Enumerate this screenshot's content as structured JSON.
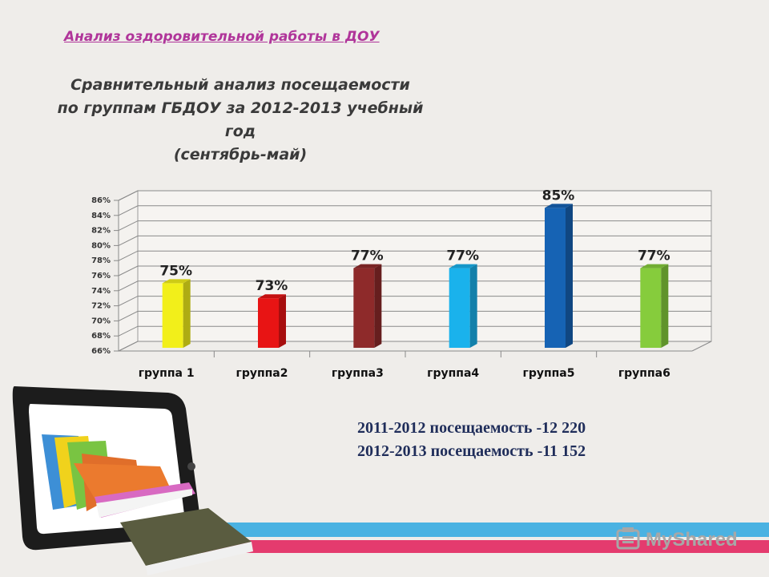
{
  "header": {
    "link_text": "Анализ оздоровительной работы в ДОУ"
  },
  "title_lines": [
    "Сравнительный анализ  посещаемости",
    "по группам ГБДОУ за 2012-2013 учебный",
    "год",
    "(сентябрь-май)"
  ],
  "chart_data": {
    "type": "bar",
    "categories": [
      "группа  1",
      "группа2",
      "группа3",
      "группа4",
      "группа5",
      "группа6"
    ],
    "values": [
      75,
      73,
      77,
      77,
      85,
      77
    ],
    "data_labels": [
      "75%",
      "73%",
      "77%",
      "77%",
      "85%",
      "77%"
    ],
    "y_ticks": [
      "66%",
      "68%",
      "70%",
      "72%",
      "74%",
      "76%",
      "78%",
      "80%",
      "82%",
      "84%",
      "86%"
    ],
    "ylim": [
      66,
      86
    ],
    "unit": "%",
    "grid": true,
    "legend": "none",
    "bar_colors": [
      "#f2ef1a",
      "#e81414",
      "#8e2a2a",
      "#1ab2ec",
      "#1663b4",
      "#86cc3c"
    ]
  },
  "stats": {
    "line1": "2011-2012 посещаемость -12 220",
    "line2": "2012-2013 посещаемость -11 152"
  },
  "watermark": {
    "text": "MyShared"
  },
  "colors": {
    "background": "#efedea",
    "header_link": "#b0359a",
    "stats_text": "#1f2d5a",
    "stripe_blue": "#4ab2e2",
    "stripe_pink": "#e43b6e"
  }
}
